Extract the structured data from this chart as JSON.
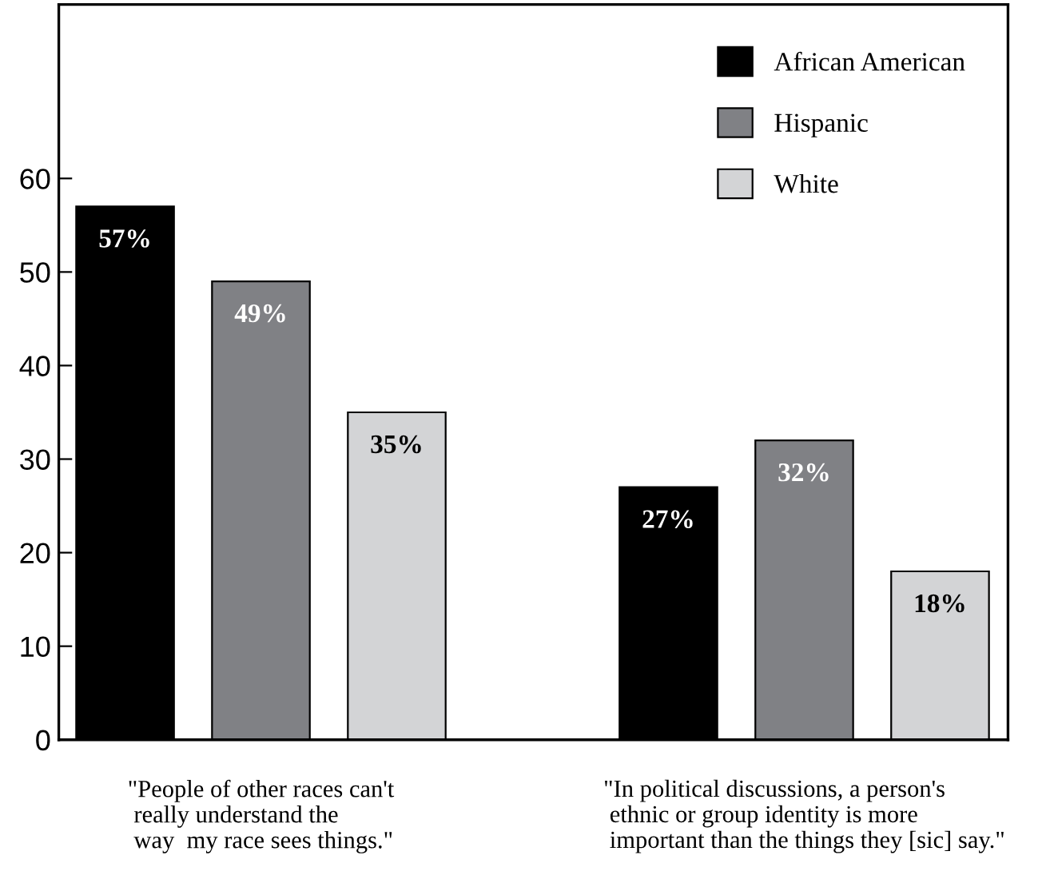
{
  "chart_data": {
    "type": "bar",
    "categories": [
      "\"People of other races can't\n really understand the\n way  my race sees things.\"",
      "\"In political discussions, a person's\n ethnic or group identity is more\n important than the things they [sic] say.\""
    ],
    "series": [
      {
        "name": "African American",
        "color": "#000000",
        "values": [
          57,
          27
        ],
        "value_labels": [
          "57%",
          "27%"
        ]
      },
      {
        "name": "Hispanic",
        "color": "#808185",
        "values": [
          49,
          32
        ],
        "value_labels": [
          "49%",
          "32%"
        ]
      },
      {
        "name": "White",
        "color": "#d3d4d6",
        "values": [
          35,
          18
        ],
        "value_labels": [
          "35%",
          "18%"
        ]
      }
    ],
    "ylim": [
      0,
      78.6
    ],
    "yticks": [
      0,
      10,
      20,
      30,
      40,
      50,
      60
    ],
    "grid": false,
    "legend": "top right"
  }
}
